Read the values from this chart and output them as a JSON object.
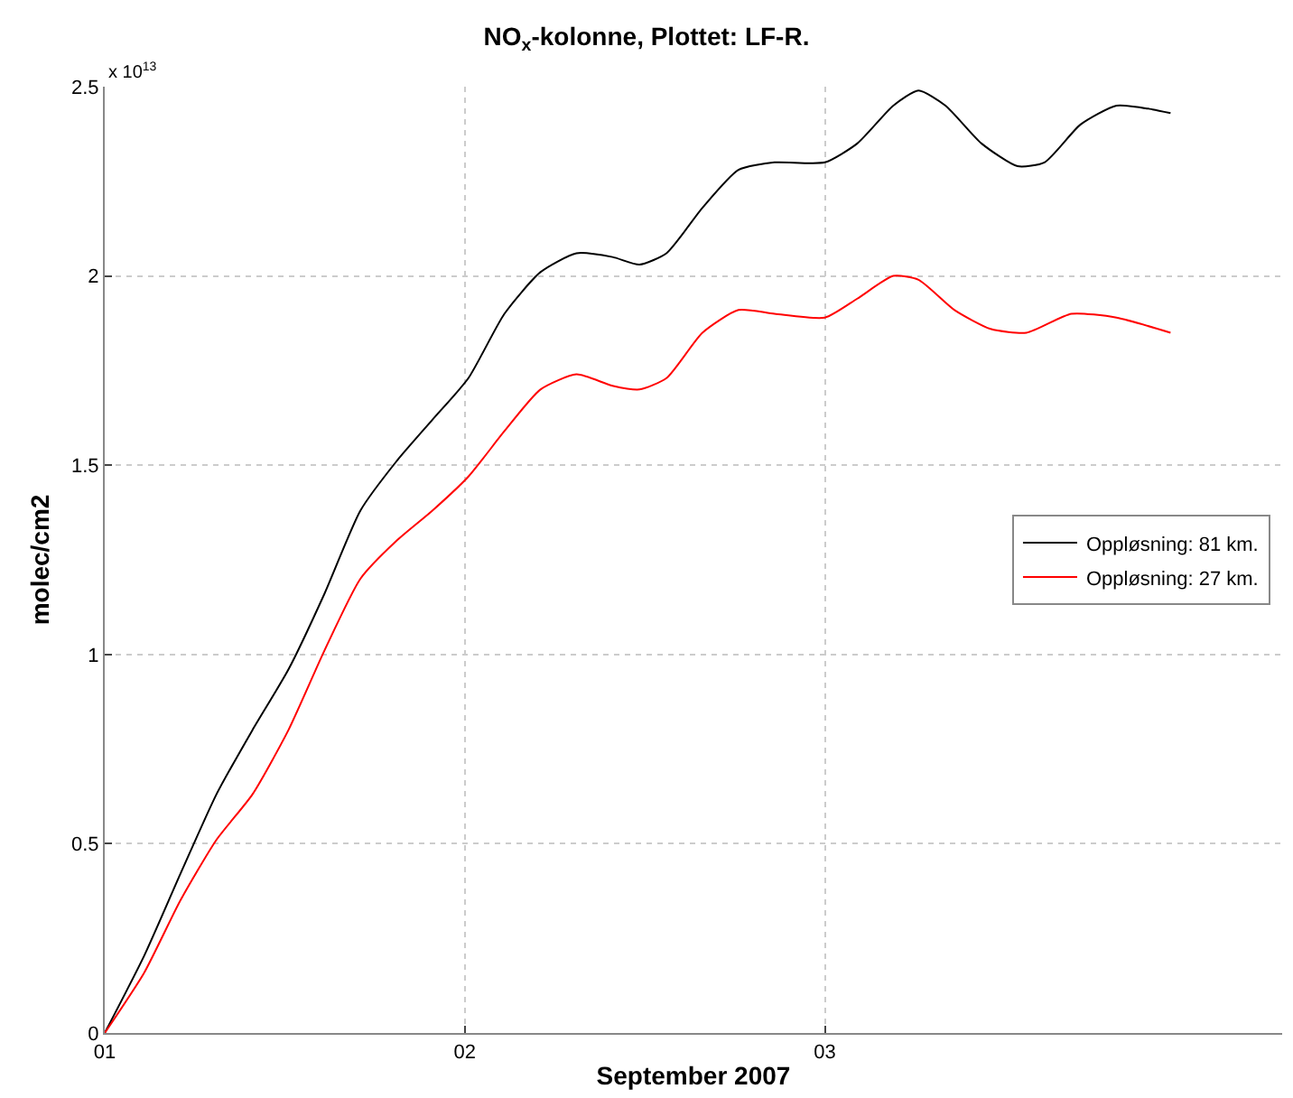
{
  "chart_data": {
    "type": "line",
    "title": "NO$_{x}$-kolonne, Plottet: LF-R.",
    "xlabel": "September 2007",
    "ylabel": "molec/cm2",
    "annotations": [
      "x 10$^{13}$"
    ],
    "x": [
      1,
      1.11,
      1.21,
      1.31,
      1.41,
      1.51,
      1.61,
      1.71,
      1.81,
      1.91,
      2.01,
      2.11,
      2.21,
      2.31,
      2.41,
      2.485,
      2.56,
      2.66,
      2.76,
      2.86,
      3.0,
      3.09,
      3.19,
      3.26,
      3.335,
      3.435,
      3.535,
      3.61,
      3.71,
      3.81,
      3.91,
      3.96
    ],
    "series": [
      {
        "name": "Oppløsning: 81 km.",
        "color": "#000000",
        "values": [
          0,
          0.205,
          0.42,
          0.63,
          0.8,
          0.96,
          1.16,
          1.38,
          1.51,
          1.62,
          1.73,
          1.9,
          2.01,
          2.06,
          2.05,
          2.03,
          2.06,
          2.18,
          2.28,
          2.3,
          2.3,
          2.35,
          2.45,
          2.49,
          2.45,
          2.35,
          2.29,
          2.3,
          2.4,
          2.45,
          2.44,
          2.43
        ]
      },
      {
        "name": "Oppløsning: 27 km.",
        "color": "#ff0000",
        "x": [
          1,
          1.11,
          1.21,
          1.31,
          1.41,
          1.51,
          1.61,
          1.71,
          1.81,
          1.91,
          2.01,
          2.11,
          2.21,
          2.31,
          2.41,
          2.485,
          2.56,
          2.66,
          2.76,
          2.86,
          3.0,
          3.09,
          3.19,
          3.26,
          3.36,
          3.46,
          3.56,
          3.685,
          3.81,
          3.96
        ],
        "values": [
          0,
          0.16,
          0.35,
          0.51,
          0.63,
          0.8,
          1.01,
          1.2,
          1.3,
          1.38,
          1.47,
          1.59,
          1.7,
          1.74,
          1.71,
          1.7,
          1.73,
          1.85,
          1.91,
          1.9,
          1.89,
          1.94,
          2.0,
          1.99,
          1.91,
          1.86,
          1.85,
          1.9,
          1.89,
          1.85
        ]
      }
    ],
    "xlim": [
      1,
      4.27
    ],
    "xticks": [
      {
        "value": 1,
        "label": "01"
      },
      {
        "value": 2,
        "label": "02"
      },
      {
        "value": 3,
        "label": "03"
      }
    ],
    "ylim": [
      0,
      2.5
    ],
    "yticks": [
      0,
      0.5,
      1,
      1.5,
      2,
      2.5
    ],
    "grid": true,
    "legend": "right",
    "line_style": "solid",
    "marker": "none"
  }
}
